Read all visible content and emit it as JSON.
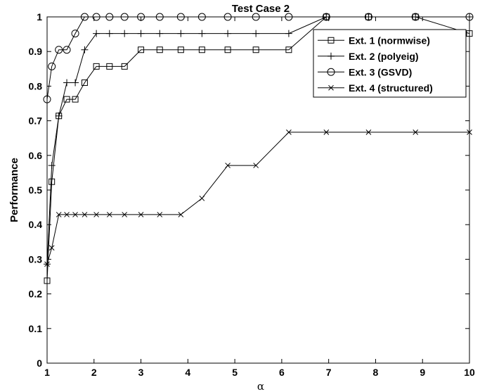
{
  "chart_data": {
    "type": "line",
    "title": "Test Case 2",
    "xlabel": "α",
    "ylabel": "Performance",
    "xlim": [
      1,
      10
    ],
    "ylim": [
      0,
      1
    ],
    "xticks": [
      1,
      2,
      3,
      4,
      5,
      6,
      7,
      8,
      9,
      10
    ],
    "yticks": [
      0,
      0.1,
      0.2,
      0.3,
      0.4,
      0.5,
      0.6,
      0.7,
      0.8,
      0.9,
      1
    ],
    "ytick_labels": [
      "0",
      "0.1",
      "0.2",
      "0.3",
      "0.4",
      "0.5",
      "0.6",
      "0.7",
      "0.8",
      "0.9",
      "1"
    ],
    "grid": false,
    "legend_position": "top-right",
    "series": [
      {
        "name": "Ext. 1 (normwise)",
        "marker": "square",
        "x": [
          1,
          1.1,
          1.25,
          1.42,
          1.6,
          1.8,
          2.05,
          2.33,
          2.65,
          3.0,
          3.4,
          3.85,
          4.3,
          4.85,
          5.45,
          6.15,
          6.95,
          7.85,
          8.85,
          10
        ],
        "y": [
          0.238,
          0.524,
          0.714,
          0.762,
          0.762,
          0.81,
          0.857,
          0.857,
          0.857,
          0.905,
          0.905,
          0.905,
          0.905,
          0.905,
          0.905,
          0.905,
          1.0,
          1.0,
          1.0,
          0.952
        ]
      },
      {
        "name": "Ext. 2 (polyeig)",
        "marker": "plus",
        "x": [
          1,
          1.1,
          1.25,
          1.42,
          1.6,
          1.8,
          2.05,
          2.33,
          2.65,
          3.0,
          3.4,
          3.85,
          4.3,
          4.85,
          5.45,
          6.15,
          6.95,
          7.85,
          8.85,
          10
        ],
        "y": [
          0.286,
          0.571,
          0.714,
          0.81,
          0.81,
          0.905,
          0.952,
          0.952,
          0.952,
          0.952,
          0.952,
          0.952,
          0.952,
          0.952,
          0.952,
          0.952,
          1.0,
          1.0,
          1.0,
          1.0
        ]
      },
      {
        "name": "Ext. 3 (GSVD)",
        "marker": "circle",
        "x": [
          1,
          1.1,
          1.25,
          1.42,
          1.6,
          1.8,
          2.05,
          2.33,
          2.65,
          3.0,
          3.4,
          3.85,
          4.3,
          4.85,
          5.45,
          6.15,
          6.95,
          7.85,
          8.85,
          10
        ],
        "y": [
          0.762,
          0.857,
          0.905,
          0.905,
          0.952,
          1.0,
          1.0,
          1.0,
          1.0,
          1.0,
          1.0,
          1.0,
          1.0,
          1.0,
          1.0,
          1.0,
          1.0,
          1.0,
          1.0,
          1.0
        ]
      },
      {
        "name": "Ext. 4 (structured)",
        "marker": "x",
        "x": [
          1,
          1.1,
          1.25,
          1.42,
          1.6,
          1.8,
          2.05,
          2.33,
          2.65,
          3.0,
          3.4,
          3.85,
          4.3,
          4.85,
          5.45,
          6.15,
          6.95,
          7.85,
          8.85,
          10
        ],
        "y": [
          0.286,
          0.333,
          0.429,
          0.429,
          0.429,
          0.429,
          0.429,
          0.429,
          0.429,
          0.429,
          0.429,
          0.429,
          0.476,
          0.571,
          0.571,
          0.667,
          0.667,
          0.667,
          0.667,
          0.667
        ]
      }
    ]
  }
}
